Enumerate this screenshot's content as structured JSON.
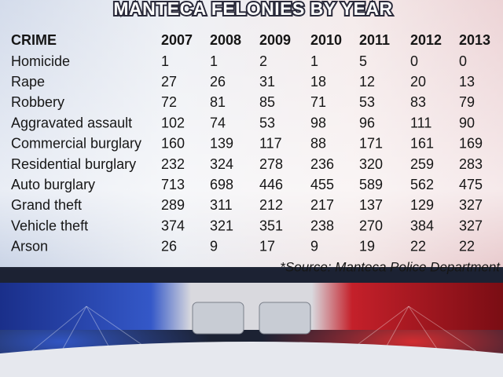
{
  "title": "MANTECA FELONIES BY YEAR",
  "table": {
    "header": [
      "CRIME",
      "2007",
      "2008",
      "2009",
      "2010",
      "2011",
      "2012",
      "2013"
    ],
    "rows": [
      [
        "Homicide",
        1,
        1,
        2,
        1,
        5,
        0,
        0
      ],
      [
        "Rape",
        27,
        26,
        31,
        18,
        12,
        20,
        13
      ],
      [
        "Robbery",
        72,
        81,
        85,
        71,
        53,
        83,
        79
      ],
      [
        "Aggravated assault",
        102,
        74,
        53,
        98,
        96,
        111,
        90
      ],
      [
        "Commercial burglary",
        160,
        139,
        117,
        88,
        171,
        161,
        169
      ],
      [
        "Residential burglary",
        232,
        324,
        278,
        236,
        320,
        259,
        283
      ],
      [
        "Auto burglary",
        713,
        698,
        446,
        455,
        589,
        562,
        475
      ],
      [
        "Grand theft",
        289,
        311,
        212,
        217,
        137,
        129,
        327
      ],
      [
        "Vehicle theft",
        374,
        321,
        351,
        238,
        270,
        384,
        327
      ],
      [
        "Arson",
        26,
        9,
        17,
        9,
        19,
        22,
        22
      ]
    ]
  },
  "source": "*Source: Manteca Police Department"
}
